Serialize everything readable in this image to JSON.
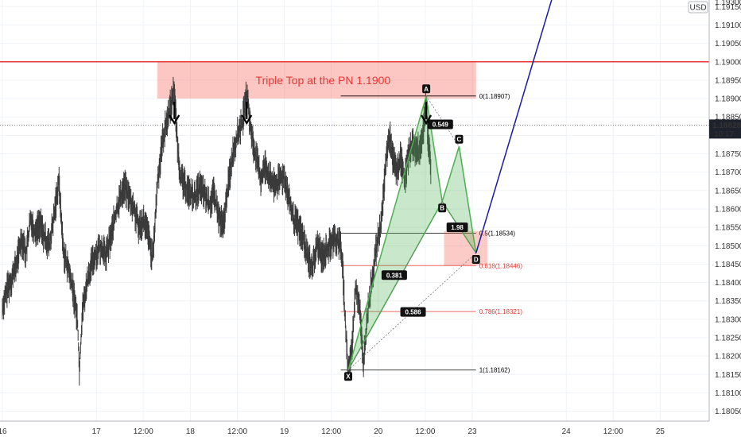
{
  "chart_data": {
    "type": "line",
    "title": "",
    "currency": "USD",
    "ylim": [
      1.1805,
      1.1928
    ],
    "yticks": [
      "1.19250",
      "1.19200",
      "1.19150",
      "1.19100",
      "1.19050",
      "1.19000",
      "1.18950",
      "1.18900",
      "1.18850",
      "1.18800",
      "1.18750",
      "1.18700",
      "1.18650",
      "1.18600",
      "1.18550",
      "1.18500",
      "1.18450",
      "1.18400",
      "1.18350",
      "1.18300",
      "1.18250",
      "1.18200",
      "1.18150",
      "1.18100",
      "1.18050"
    ],
    "y_partial_top": "1.19300",
    "xticks": [
      "16",
      "17",
      "12:00",
      "18",
      "12:00",
      "19",
      "12:00",
      "20",
      "12:00",
      "23",
      "24",
      "12:00",
      "25"
    ],
    "x_range_days": [
      0,
      7.2
    ],
    "xtick_days": [
      0,
      1,
      1.5,
      2,
      2.5,
      3,
      3.5,
      4,
      4.5,
      5,
      6,
      6.5,
      7
    ],
    "price_series": [
      [
        0.0,
        1.1833
      ],
      [
        0.05,
        1.1838
      ],
      [
        0.1,
        1.1841
      ],
      [
        0.15,
        1.1845
      ],
      [
        0.2,
        1.1852
      ],
      [
        0.25,
        1.1848
      ],
      [
        0.3,
        1.1857
      ],
      [
        0.35,
        1.1854
      ],
      [
        0.4,
        1.1856
      ],
      [
        0.45,
        1.1852
      ],
      [
        0.5,
        1.185
      ],
      [
        0.55,
        1.1858
      ],
      [
        0.6,
        1.1868
      ],
      [
        0.65,
        1.1848
      ],
      [
        0.7,
        1.1844
      ],
      [
        0.75,
        1.1838
      ],
      [
        0.8,
        1.183
      ],
      [
        0.82,
        1.1816
      ],
      [
        0.85,
        1.1832
      ],
      [
        0.9,
        1.184
      ],
      [
        0.95,
        1.1845
      ],
      [
        1.0,
        1.1848
      ],
      [
        1.05,
        1.185
      ],
      [
        1.1,
        1.1847
      ],
      [
        1.15,
        1.1852
      ],
      [
        1.2,
        1.1858
      ],
      [
        1.25,
        1.1863
      ],
      [
        1.3,
        1.1866
      ],
      [
        1.35,
        1.1863
      ],
      [
        1.4,
        1.186
      ],
      [
        1.45,
        1.1855
      ],
      [
        1.5,
        1.1857
      ],
      [
        1.55,
        1.1853
      ],
      [
        1.6,
        1.1846
      ],
      [
        1.65,
        1.1867
      ],
      [
        1.7,
        1.1878
      ],
      [
        1.75,
        1.1884
      ],
      [
        1.8,
        1.1889
      ],
      [
        1.83,
        1.1893
      ],
      [
        1.86,
        1.1878
      ],
      [
        1.9,
        1.1868
      ],
      [
        1.95,
        1.1866
      ],
      [
        2.0,
        1.1864
      ],
      [
        2.05,
        1.1863
      ],
      [
        2.1,
        1.1866
      ],
      [
        2.15,
        1.1864
      ],
      [
        2.2,
        1.1861
      ],
      [
        2.25,
        1.1864
      ],
      [
        2.3,
        1.1858
      ],
      [
        2.35,
        1.1855
      ],
      [
        2.4,
        1.1866
      ],
      [
        2.45,
        1.1875
      ],
      [
        2.5,
        1.188
      ],
      [
        2.55,
        1.1883
      ],
      [
        2.6,
        1.1891
      ],
      [
        2.65,
        1.188
      ],
      [
        2.7,
        1.1874
      ],
      [
        2.75,
        1.1868
      ],
      [
        2.8,
        1.1872
      ],
      [
        2.85,
        1.1868
      ],
      [
        2.9,
        1.1866
      ],
      [
        2.95,
        1.1868
      ],
      [
        3.0,
        1.1869
      ],
      [
        3.05,
        1.1862
      ],
      [
        3.1,
        1.1857
      ],
      [
        3.15,
        1.1855
      ],
      [
        3.2,
        1.1852
      ],
      [
        3.25,
        1.1847
      ],
      [
        3.3,
        1.1844
      ],
      [
        3.35,
        1.185
      ],
      [
        3.4,
        1.1847
      ],
      [
        3.45,
        1.1849
      ],
      [
        3.5,
        1.1851
      ],
      [
        3.55,
        1.1852
      ],
      [
        3.6,
        1.185
      ],
      [
        3.62,
        1.1845
      ],
      [
        3.65,
        1.1828
      ],
      [
        3.68,
        1.1816
      ],
      [
        3.72,
        1.1822
      ],
      [
        3.76,
        1.1839
      ],
      [
        3.8,
        1.1834
      ],
      [
        3.84,
        1.1818
      ],
      [
        3.88,
        1.183
      ],
      [
        3.92,
        1.1838
      ],
      [
        3.96,
        1.1846
      ],
      [
        4.0,
        1.1852
      ],
      [
        4.04,
        1.1858
      ],
      [
        4.08,
        1.1873
      ],
      [
        4.12,
        1.188
      ],
      [
        4.16,
        1.1873
      ],
      [
        4.2,
        1.187
      ],
      [
        4.24,
        1.1874
      ],
      [
        4.28,
        1.1868
      ],
      [
        4.32,
        1.1874
      ],
      [
        4.36,
        1.1878
      ],
      [
        4.4,
        1.1876
      ],
      [
        4.44,
        1.1876
      ],
      [
        4.48,
        1.1882
      ],
      [
        4.51,
        1.189
      ],
      [
        4.53,
        1.1878
      ],
      [
        4.56,
        1.1871
      ]
    ],
    "current_price": "1.18828",
    "countdown": "10:17",
    "resistance_level": 1.19,
    "zone_label": "Triple Top at the PN 1.1900",
    "zone": {
      "x": [
        1.65,
        5.04
      ],
      "y": [
        1.189,
        1.19
      ]
    },
    "peak_arrows": [
      {
        "x": 1.83
      },
      {
        "x": 2.6
      },
      {
        "x": 4.51
      }
    ],
    "fib_levels": [
      {
        "label": "0(1.18907)",
        "value": 1.18907,
        "color": "#000000"
      },
      {
        "label": "0.5(1.18534)",
        "value": 1.18534,
        "color": "#000000"
      },
      {
        "label": "0.618(1.18446)",
        "value": 1.18446,
        "color": "#e53935"
      },
      {
        "label": "0.786(1.18321)",
        "value": 1.18321,
        "color": "#e53935"
      },
      {
        "label": "1(1.18162)",
        "value": 1.18162,
        "color": "#000000"
      }
    ],
    "fib_line_x": [
      3.6,
      5.04
    ],
    "harmonic_points": [
      {
        "label": "X",
        "x": 3.68,
        "y": 1.18162
      },
      {
        "label": "A",
        "x": 4.51,
        "y": 1.18907
      },
      {
        "label": "B",
        "x": 4.68,
        "y": 1.1862
      },
      {
        "label": "C",
        "x": 4.86,
        "y": 1.1877
      },
      {
        "label": "D",
        "x": 5.04,
        "y": 1.1848
      }
    ],
    "ratios": [
      {
        "label": "0.549",
        "x": 4.66,
        "y": 1.1883
      },
      {
        "label": "1.98",
        "x": 4.84,
        "y": 1.1855
      },
      {
        "label": "0.381",
        "x": 4.17,
        "y": 1.1842
      },
      {
        "label": "0.586",
        "x": 4.37,
        "y": 1.1832
      }
    ],
    "prz_box": {
      "x": [
        4.7,
        5.16
      ],
      "y": [
        1.18446,
        1.1854
      ]
    },
    "projection": {
      "from": [
        5.04,
        1.1848
      ],
      "to": [
        5.94,
        1.1925
      ]
    }
  }
}
